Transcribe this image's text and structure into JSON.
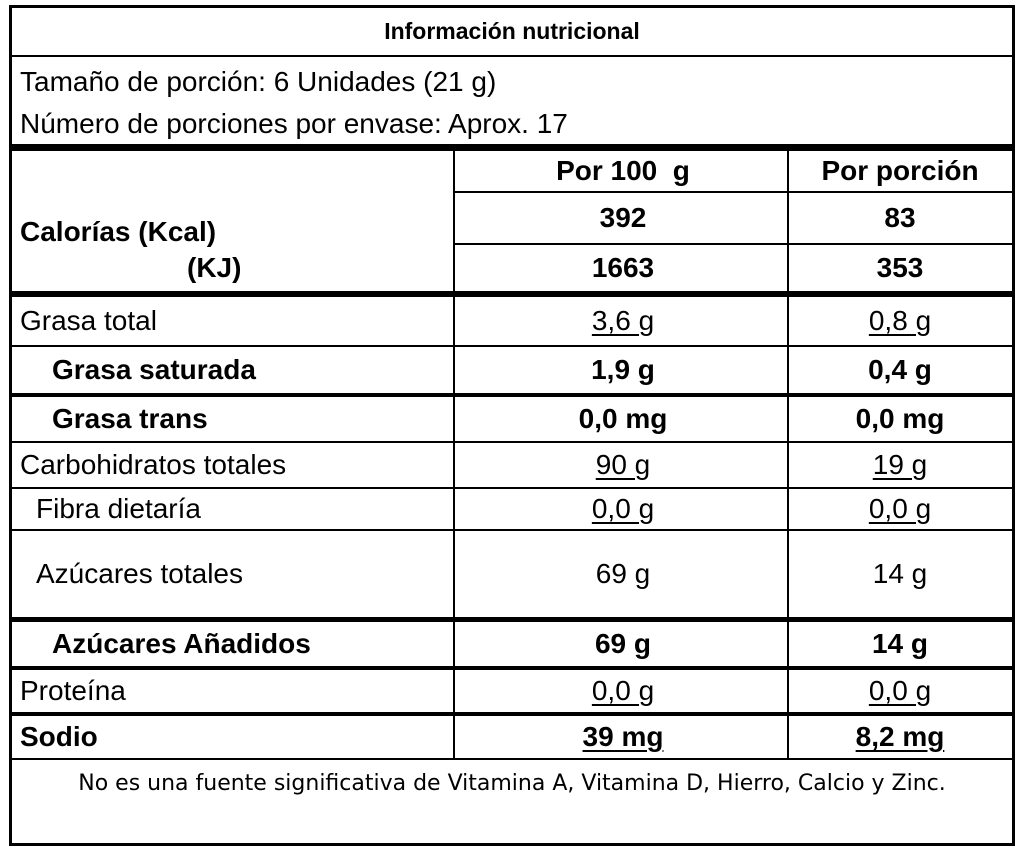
{
  "title": "Información nutricional",
  "serving_size": "Tamaño de porción: 6 Unidades (21 g)",
  "servings_per_container": "Número de porciones por envase: Aprox. 17",
  "headers": {
    "per100": "Por 100  g",
    "portion": "Por porción"
  },
  "calories": {
    "label": "Calorías (Kcal)",
    "kcal_per100": "392",
    "kcal_portion": "83",
    "kj_label": "(KJ)",
    "kj_per100": "1663",
    "kj_portion": "353"
  },
  "rows": [
    {
      "name": "Grasa total",
      "per100": "3,6 g",
      "portion": "0,8 g"
    },
    {
      "name": "Grasa saturada",
      "per100": "1,9 g",
      "portion": "0,4 g"
    },
    {
      "name": "Grasa trans",
      "per100": "0,0 mg",
      "portion": "0,0 mg"
    },
    {
      "name": "Carbohidratos totales",
      "per100": "90 g",
      "portion": "19 g"
    },
    {
      "name": "Fibra dietaría",
      "per100": "0,0 g",
      "portion": "0,0 g"
    },
    {
      "name": "Azúcares totales",
      "per100": "69 g",
      "portion": "14 g"
    },
    {
      "name": "Azúcares Añadidos",
      "per100": "69 g",
      "portion": "14 g"
    },
    {
      "name": "Proteína",
      "per100": "0,0 g",
      "portion": "0,0 g"
    },
    {
      "name": "Sodio",
      "per100": "39 mg",
      "portion": "8,2 mg"
    }
  ],
  "footnote": "No es una fuente significativa de Vitamina A, Vitamina D, Hierro, Calcio y Zinc."
}
